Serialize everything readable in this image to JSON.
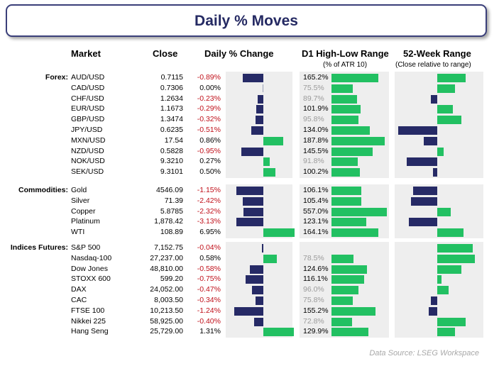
{
  "title": "Daily % Moves",
  "headers": {
    "market": "Market",
    "close": "Close",
    "daily": "Daily % Change",
    "range": "D1 High-Low Range",
    "range_sub": "(% of ATR 10)",
    "week52": "52-Week Range",
    "week52_sub": "(Close relative to range)"
  },
  "footer": "Data Source: LSEG Workspace",
  "colors": {
    "navy": "#262a66",
    "green": "#22c062",
    "negative_text": "#c0101a",
    "below_average_text": "#9a9a9a"
  },
  "chart_data": {
    "type": "table",
    "groups": [
      {
        "label": "Forex:",
        "rows": [
          {
            "name": "AUD/USD",
            "close": "0.7115",
            "change": "-0.89%",
            "change_value": -0.89,
            "range": "165.2%",
            "range_value": 165.2,
            "week52": 0.65
          },
          {
            "name": "CAD/USD",
            "close": "0.7306",
            "change": "0.00%",
            "change_value": 0.0,
            "range": "75.5%",
            "range_value": 75.5,
            "week52": 0.4
          },
          {
            "name": "CHF/USD",
            "close": "1.2634",
            "change": "-0.23%",
            "change_value": -0.23,
            "range": "89.7%",
            "range_value": 89.7,
            "week52": -0.15
          },
          {
            "name": "EUR/USD",
            "close": "1.1673",
            "change": "-0.29%",
            "change_value": -0.29,
            "range": "101.9%",
            "range_value": 101.9,
            "week52": 0.35
          },
          {
            "name": "GBP/USD",
            "close": "1.3474",
            "change": "-0.32%",
            "change_value": -0.32,
            "range": "95.8%",
            "range_value": 95.8,
            "week52": 0.55
          },
          {
            "name": "JPY/USD",
            "close": "0.6235",
            "change": "-0.51%",
            "change_value": -0.51,
            "range": "134.0%",
            "range_value": 134.0,
            "week52": -0.88
          },
          {
            "name": "MXN/USD",
            "close": "17.54",
            "change": "0.86%",
            "change_value": 0.86,
            "range": "187.8%",
            "range_value": 187.8,
            "week52": -0.3
          },
          {
            "name": "NZD/USD",
            "close": "0.5828",
            "change": "-0.95%",
            "change_value": -0.95,
            "range": "145.5%",
            "range_value": 145.5,
            "week52": 0.15
          },
          {
            "name": "NOK/USD",
            "close": "9.3210",
            "change": "0.27%",
            "change_value": 0.27,
            "range": "91.8%",
            "range_value": 91.8,
            "week52": -0.7
          },
          {
            "name": "SEK/USD",
            "close": "9.3101",
            "change": "0.50%",
            "change_value": 0.5,
            "range": "100.2%",
            "range_value": 100.2,
            "week52": -0.1
          }
        ]
      },
      {
        "label": "Commodities:",
        "rows": [
          {
            "name": "Gold",
            "close": "4546.09",
            "change": "-1.15%",
            "change_value": -1.15,
            "range": "106.1%",
            "range_value": 106.1,
            "week52": -0.55
          },
          {
            "name": "Silver",
            "close": "71.39",
            "change": "-2.42%",
            "change_value": -2.42,
            "range": "105.4%",
            "range_value": 105.4,
            "week52": -0.6
          },
          {
            "name": "Copper",
            "close": "5.8785",
            "change": "-2.32%",
            "change_value": -2.32,
            "range": "557.0%",
            "range_value": 557.0,
            "week52": 0.3
          },
          {
            "name": "Platinum",
            "close": "1,878.42",
            "change": "-3.13%",
            "change_value": -3.13,
            "range": "123.1%",
            "range_value": 123.1,
            "week52": -0.65
          },
          {
            "name": "WTI",
            "close": "108.89",
            "change": "6.95%",
            "change_value": 6.95,
            "range": "164.1%",
            "range_value": 164.1,
            "week52": 0.6
          }
        ]
      },
      {
        "label": "Indices Futures:",
        "rows": [
          {
            "name": "S&P 500",
            "close": "7,152.75",
            "change": "-0.04%",
            "change_value": -0.04,
            "range": "",
            "range_value": null,
            "week52": 0.8
          },
          {
            "name": "Nasdaq-100",
            "close": "27,237.00",
            "change": "0.58%",
            "change_value": 0.58,
            "range": "78.5%",
            "range_value": 78.5,
            "week52": 0.85
          },
          {
            "name": "Dow Jones",
            "close": "48,810.00",
            "change": "-0.58%",
            "change_value": -0.58,
            "range": "124.6%",
            "range_value": 124.6,
            "week52": 0.55
          },
          {
            "name": "STOXX 600",
            "close": "599.20",
            "change": "-0.75%",
            "change_value": -0.75,
            "range": "116.1%",
            "range_value": 116.1,
            "week52": 0.1
          },
          {
            "name": "DAX",
            "close": "24,052.00",
            "change": "-0.47%",
            "change_value": -0.47,
            "range": "96.0%",
            "range_value": 96.0,
            "week52": 0.25
          },
          {
            "name": "CAC",
            "close": "8,003.50",
            "change": "-0.34%",
            "change_value": -0.34,
            "range": "75.8%",
            "range_value": 75.8,
            "week52": -0.15
          },
          {
            "name": "FTSE 100",
            "close": "10,213.50",
            "change": "-1.24%",
            "change_value": -1.24,
            "range": "155.2%",
            "range_value": 155.2,
            "week52": -0.2
          },
          {
            "name": "Nikkei 225",
            "close": "58,925.00",
            "change": "-0.40%",
            "change_value": -0.4,
            "range": "72.8%",
            "range_value": 72.8,
            "week52": 0.65
          },
          {
            "name": "Hang Seng",
            "close": "25,729.00",
            "change": "1.31%",
            "change_value": 1.31,
            "range": "129.9%",
            "range_value": 129.9,
            "week52": 0.4
          }
        ]
      }
    ]
  }
}
